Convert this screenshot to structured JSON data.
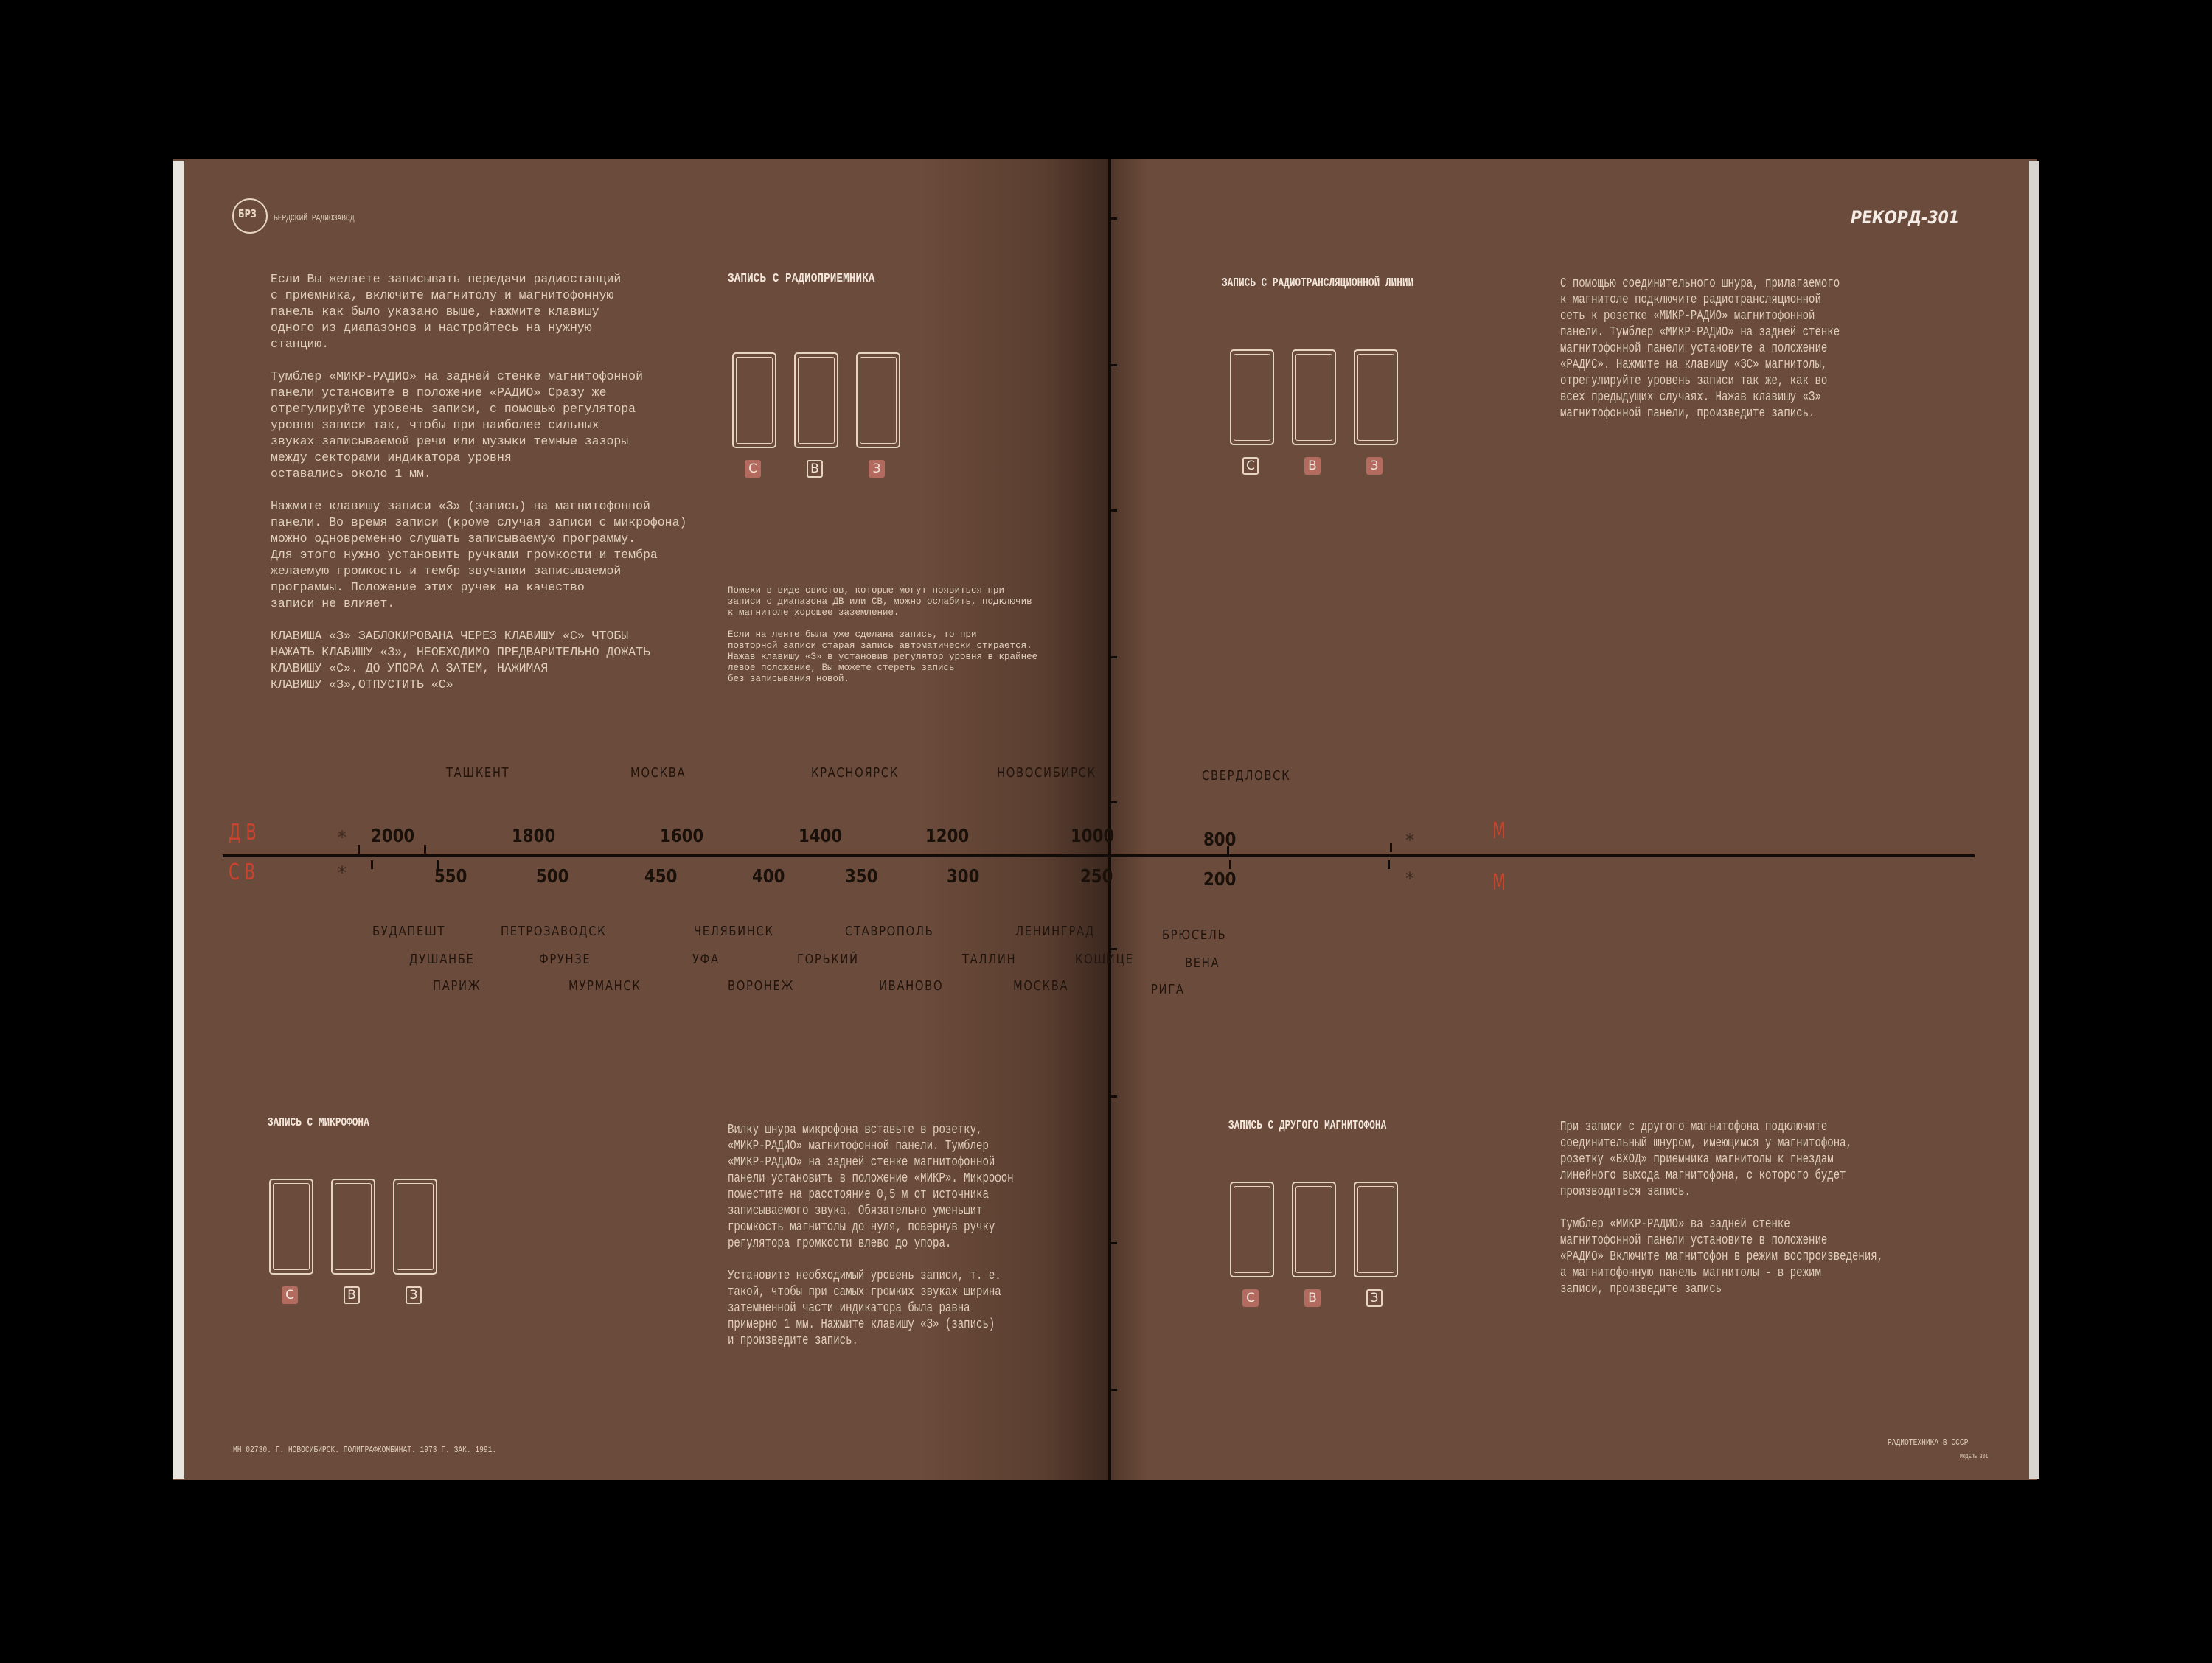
{
  "header": {
    "logo_text": "БРЗ",
    "factory_name": "БЕРДСКИЙ РАДИОЗАВОД",
    "model_logo": "РЕКОРД-301"
  },
  "intro": {
    "paragraphs": [
      "Если Вы желаете записывать передачи радиостанций\nс приемника, включите магнитолу и магнитофонную\nпанель как было указано выше, нажмите клавишу\nодного из диапазонов и настройтесь на нужную\nстанцию.",
      "Тумблер «МИКР-РАДИО» на задней стенке магнитофонной\nпанели установите в положение «РАДИО» Сразу же\nотрегулируйте уровень записи, с помощью регулятора\nуровня записи так, чтобы при наиболее сильных\nзвуках записываемой речи или музыки темные зазоры\nмежду секторами индикатора уровня\nоставались около 1 мм.",
      "Нажмите клавишу записи «З» (запись) на магнитофонной\nпанели. Во время записи (кроме случая записи с микрофона)\nможно одновременно слушать записываемую программу.\nДля этого нужно установить ручками громкости и тембра\nжелаемую громкость и тембр звучании записываемой\nпрограммы. Положение этих ручек на качество\nзаписи не влияет.",
      "КЛАВИША «З» ЗАБЛОКИРОВАНА ЧЕРЕЗ КЛАВИШУ «С» ЧТОБЫ\nНАЖАТЬ КЛАВИШУ «З», НЕОБХОДИМО ПРЕДВАРИТЕЛЬНО ДОЖАТЬ\nКЛАВИШУ «С». ДО УПОРА А ЗАТЕМ, НАЖИМАЯ\nКЛАВИШУ «З»,ОТПУСТИТЬ «С»"
    ]
  },
  "sections": {
    "receiver": {
      "title": "ЗАПИСЬ С РАДИОПРИЕМНИКА",
      "keys": [
        {
          "label": "С",
          "pressed": true
        },
        {
          "label": "В",
          "pressed": false
        },
        {
          "label": "З",
          "pressed": true
        }
      ],
      "notes": [
        "Помехи в виде свистов, которые могут появиться при\nзаписи с диапазона ДВ или СВ, можно ослабить, подключив\nк магнитоле хорошее заземление.",
        "Если на ленте была уже сделана запись, то при\nповторной записи старая запись автоматически стирается.\nНажав клавишу «З» в установив регулятор уровня в крайнее\nлевое положение, Вы можете стереть запись\nбез записывания новой."
      ]
    },
    "radioline": {
      "title": "ЗАПИСЬ С РАДИОТРАНСЛЯЦИОННОЙ ЛИНИИ",
      "keys": [
        {
          "label": "С",
          "pressed": false
        },
        {
          "label": "В",
          "pressed": true
        },
        {
          "label": "З",
          "pressed": true
        }
      ],
      "text": "С помощью соединительного шнура, прилагаемого\nк магнитоле подключите радиотрансляционной\nсеть к розетке «МИКР-РАДИО» магнитофонной\nпанели. Тумблер «МИКР-РАДИО» на задней стенке\nмагнитофонной панели установите а положение\n«РАДИС». Нажмите на клавишу «ЗС» магнитолы,\nотрегулируйте уровень записи так же, как во\nвсех предыдущих случаях. Нажав клавишу «З»\nмагнитофонной панели, произведите запись."
    },
    "microphone": {
      "title": "ЗАПИСЬ С МИКРОФОНА",
      "keys": [
        {
          "label": "С",
          "pressed": true
        },
        {
          "label": "В",
          "pressed": false
        },
        {
          "label": "З",
          "pressed": false
        }
      ],
      "text": "Вилку шнура микрофона вставьте в розетку,\n«МИКР-РАДИО» магнитофонной панели. Тумблер\n«МИКР-РАДИО» на задней стенке магнитофонной\nпанели установить в положение «МИКР». Микрофон\nпоместите на расстояние 0,5 м от источника\nзаписываемого звука. Обязательно уменьшит\nгромкость магнитолы до нуля, повернув ручку\nрегулятора громкости влево до упора.\n\nУстановите необходимый уровень записи, т. е.\nтакой, чтобы при самых громких звуках ширина\nзатемненной части индикатора была равна\nпримерно 1 мм. Нажмите клавишу «З» (запись)\nи произведите запись."
    },
    "tape": {
      "title": "ЗАПИСЬ С ДРУГОГО МАГНИТОФОНА",
      "keys": [
        {
          "label": "С",
          "pressed": true
        },
        {
          "label": "В",
          "pressed": true
        },
        {
          "label": "З",
          "pressed": false
        }
      ],
      "text": "При записи с другого магнитофона подключите\nсоединительный шнуром, имеющимся у магнитофона,\nрозетку «ВХОД» приемника магнитолы к гнездам\nлинейного выхода магнитофона, с которого будет\nпроизводиться запись.\n\nТумблер «МИКР-РАДИО» ва задней стенке\nмагнитофонной панели установите в положение\n«РАДИО» Включите магнитофон в режим воспроизведения,\nа магнитофонную панель магнитолы - в режим\nзаписи, произведите запись"
    }
  },
  "scale": {
    "band_lw": "ДВ",
    "band_mw": "СВ",
    "band_right_top": "М",
    "band_right_bottom": "М",
    "marker": "*",
    "lw_values": [
      "2000",
      "1800",
      "1600",
      "1400",
      "1200",
      "1000",
      "800"
    ],
    "mw_values": [
      "550",
      "500",
      "450",
      "400",
      "350",
      "300",
      "250",
      "200"
    ],
    "cities_top": [
      "ТАШКЕНТ",
      "МОСКВА",
      "КРАСНОЯРСК",
      "НОВОСИБИРСК",
      "СВЕРДЛОВСК"
    ],
    "cities_row1": [
      "БУДАПЕШТ",
      "ПЕТРОЗАВОДСК",
      "ЧЕЛЯБИНСК",
      "СТАВРОПОЛЬ",
      "ЛЕНИНГРАД",
      "БРЮСЕЛЬ"
    ],
    "cities_row2": [
      "ДУШАНБЕ",
      "ФРУНЗЕ",
      "УФА",
      "ГОРЬКИЙ",
      "ТАЛЛИН",
      "КОШИЦЕ",
      "ВЕНА"
    ],
    "cities_row3": [
      "ПАРИЖ",
      "МУРМАНСК",
      "ВОРОНЕЖ",
      "ИВАНОВО",
      "МОСКВА",
      "РИГА"
    ]
  },
  "footer": {
    "imprint": "МН 02730. Г. НОВОСИБИРСК. ПОЛИГРАФКОМБИНАТ. 1973 Г. ЗАК. 1991.",
    "series": "РАДИОТЕХНИКА В СССР",
    "model": "МОДЕЛЬ 301"
  },
  "colors": {
    "page": "#6b4b3b",
    "text": "#e0cfbd",
    "key_active": "#b36b5f",
    "band_red": "#c8442e",
    "scale_ink": "#1a100a"
  }
}
